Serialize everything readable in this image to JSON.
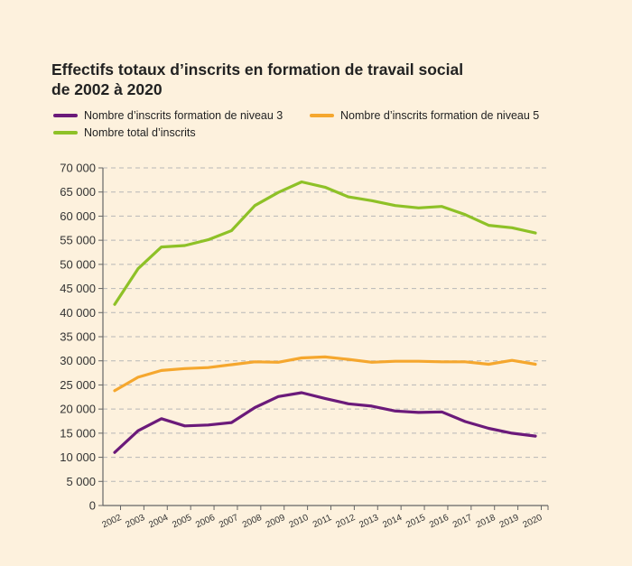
{
  "chart_data": {
    "type": "line",
    "title": "Effectifs totaux d’inscrits en formation de travail social de 2002 à 2020",
    "title_lines": [
      "Effectifs totaux d’inscrits en formation de travail social",
      "de 2002 à 2020"
    ],
    "xlabel": "",
    "ylabel": "",
    "ylim": [
      0,
      70000
    ],
    "grid": true,
    "y_ticks": [
      0,
      5000,
      10000,
      15000,
      20000,
      25000,
      30000,
      35000,
      40000,
      45000,
      50000,
      55000,
      60000,
      65000,
      70000
    ],
    "y_tick_labels": [
      "0",
      "5 000",
      "10 000",
      "15 000",
      "20 000",
      "25 000",
      "30 000",
      "35 000",
      "40 000",
      "45 000",
      "50 000",
      "55 000",
      "60 000",
      "65 000",
      "70 000"
    ],
    "categories": [
      "2002",
      "2003",
      "2004",
      "2005",
      "2006",
      "2007",
      "2008",
      "2009",
      "2010",
      "2011",
      "2012",
      "2013",
      "2014",
      "2015",
      "2016",
      "2017",
      "2018",
      "2019",
      "2020"
    ],
    "series": [
      {
        "name": "Nombre d’inscrits formation de niveau 3",
        "color": "#6b1a7a",
        "values": [
          11000,
          15500,
          18000,
          16500,
          16700,
          17200,
          20300,
          22600,
          23400,
          22200,
          21100,
          20600,
          19600,
          19300,
          19400,
          17400,
          16000,
          15000,
          14400
        ]
      },
      {
        "name": "Nombre d’inscrits formation de niveau 5",
        "color": "#f5a72e",
        "values": [
          23800,
          26600,
          28000,
          28400,
          28600,
          29200,
          29800,
          29700,
          30600,
          30800,
          30300,
          29700,
          29900,
          29900,
          29800,
          29800,
          29300,
          30100,
          29300
        ]
      },
      {
        "name": "Nombre total d’inscrits",
        "color": "#8ec127",
        "values": [
          41700,
          49100,
          53600,
          53900,
          55100,
          57000,
          62200,
          64900,
          67100,
          66000,
          64000,
          63200,
          62200,
          61700,
          62000,
          60300,
          58100,
          57600,
          56500
        ]
      }
    ],
    "legend": "top-left"
  }
}
